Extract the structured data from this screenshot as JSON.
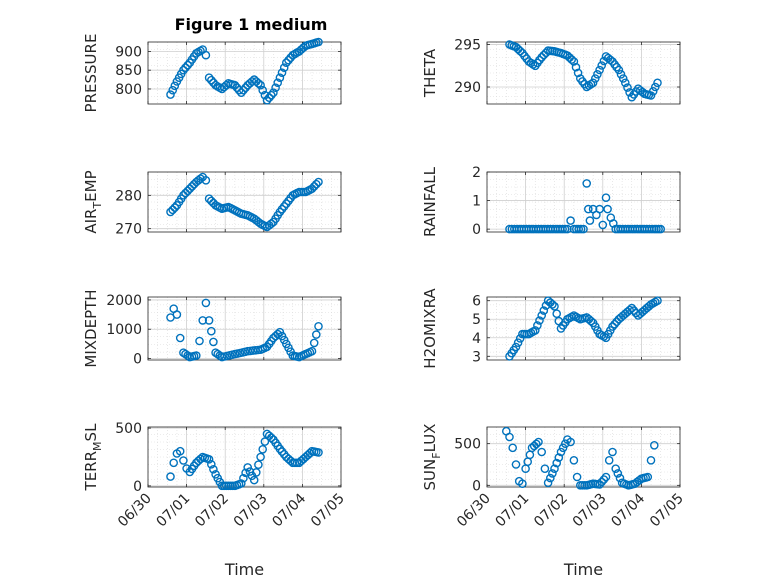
{
  "figure_title": "Figure 1 medium",
  "marker_color": "#0072BD",
  "chart_data": [
    {
      "type": "scatter",
      "name": "PRESSURE",
      "ylabel": "PRESSURE",
      "ylabel_main": "PRESSURE",
      "ylabel_sub": "",
      "ylabel_tail": "",
      "ylim": [
        760,
        925
      ],
      "yticks": [
        800,
        850,
        900
      ],
      "xlabel": "",
      "x": [
        "06/30 14:00",
        "06/30 18:00",
        "06/30 22:00",
        "07/01 02:00",
        "07/01 06:00",
        "07/01 10:00",
        "07/01 12:00",
        "07/01 14:00",
        "07/01 18:00",
        "07/01 22:00",
        "07/02 02:00",
        "07/02 06:00",
        "07/02 10:00",
        "07/02 14:00",
        "07/02 18:00",
        "07/02 22:00",
        "07/03 02:00",
        "07/03 06:00",
        "07/03 10:00",
        "07/03 14:00",
        "07/03 18:00",
        "07/03 22:00",
        "07/04 02:00",
        "07/04 06:00",
        "07/04 10:00"
      ],
      "y": [
        785,
        820,
        850,
        870,
        895,
        905,
        890,
        830,
        810,
        800,
        815,
        810,
        790,
        810,
        825,
        810,
        770,
        790,
        830,
        870,
        890,
        900,
        915,
        920,
        925
      ]
    },
    {
      "type": "scatter",
      "name": "THETA",
      "ylabel": "THETA",
      "ylabel_main": "THETA",
      "ylabel_sub": "",
      "ylabel_tail": "",
      "ylim": [
        288,
        295.3
      ],
      "yticks": [
        290,
        295
      ],
      "xlabel": "",
      "x": [
        "06/30 14:00",
        "06/30 18:00",
        "06/30 22:00",
        "07/01 02:00",
        "07/01 06:00",
        "07/01 10:00",
        "07/01 14:00",
        "07/01 18:00",
        "07/01 22:00",
        "07/02 02:00",
        "07/02 06:00",
        "07/02 10:00",
        "07/02 14:00",
        "07/02 18:00",
        "07/02 22:00",
        "07/03 02:00",
        "07/03 06:00",
        "07/03 10:00",
        "07/03 14:00",
        "07/03 18:00",
        "07/03 22:00",
        "07/04 02:00",
        "07/04 06:00",
        "07/04 10:00"
      ],
      "y": [
        295,
        294.7,
        294,
        293,
        292.5,
        293.5,
        294.3,
        294.2,
        294,
        293.7,
        293,
        291,
        290,
        290.5,
        292,
        293.6,
        293,
        292,
        290.5,
        288.8,
        289.8,
        289.2,
        289,
        290.5
      ]
    },
    {
      "type": "scatter",
      "name": "AIR_TEMP",
      "ylabel": "AIR_TEMP",
      "ylabel_main": "AIR",
      "ylabel_sub": "T",
      "ylabel_tail": "EMP",
      "ylim": [
        269,
        287
      ],
      "yticks": [
        270,
        280
      ],
      "xlabel": "",
      "x": [
        "06/30 14:00",
        "06/30 18:00",
        "06/30 22:00",
        "07/01 02:00",
        "07/01 06:00",
        "07/01 10:00",
        "07/01 12:00",
        "07/01 14:00",
        "07/01 18:00",
        "07/01 22:00",
        "07/02 02:00",
        "07/02 06:00",
        "07/02 10:00",
        "07/02 14:00",
        "07/02 18:00",
        "07/02 22:00",
        "07/03 02:00",
        "07/03 06:00",
        "07/03 10:00",
        "07/03 14:00",
        "07/03 18:00",
        "07/03 22:00",
        "07/04 02:00",
        "07/04 06:00",
        "07/04 10:00"
      ],
      "y": [
        275,
        277,
        280,
        282,
        284,
        285.5,
        284.5,
        279,
        277,
        276,
        276.5,
        275.5,
        274.5,
        274,
        273,
        271.5,
        270.5,
        272,
        275,
        277.5,
        280,
        281,
        281,
        282,
        284
      ]
    },
    {
      "type": "scatter",
      "name": "RAINFALL",
      "ylabel": "RAINFALL",
      "ylabel_main": "RAINFALL",
      "ylabel_sub": "",
      "ylabel_tail": "",
      "ylim": [
        -0.1,
        2
      ],
      "yticks": [
        0,
        1,
        2
      ],
      "xlabel": "",
      "x": [
        "06/30 14:00",
        "06/30 20:00",
        "07/01 02:00",
        "07/01 08:00",
        "07/01 14:00",
        "07/01 20:00",
        "07/02 02:00",
        "07/02 04:00",
        "07/02 06:00",
        "07/02 12:00",
        "07/02 14:00",
        "07/02 15:00",
        "07/02 16:00",
        "07/02 18:00",
        "07/02 20:00",
        "07/02 22:00",
        "07/03 00:00",
        "07/03 02:00",
        "07/03 03:00",
        "07/03 05:00",
        "07/03 08:00",
        "07/03 14:00",
        "07/03 20:00",
        "07/04 02:00",
        "07/04 08:00",
        "07/04 12:00"
      ],
      "y": [
        0,
        0,
        0,
        0,
        0,
        0,
        0,
        0.3,
        0,
        0,
        1.6,
        0.7,
        0.3,
        0.7,
        0.5,
        0.7,
        0.15,
        1.1,
        0.7,
        0.4,
        0,
        0,
        0,
        0,
        0,
        0
      ]
    },
    {
      "type": "scatter",
      "name": "MIXDEPTH",
      "ylabel": "MIXDEPTH",
      "ylabel_main": "MIXDEPTH",
      "ylabel_sub": "",
      "ylabel_tail": "",
      "ylim": [
        -50,
        2100
      ],
      "yticks": [
        0,
        1000,
        2000
      ],
      "xlabel": "",
      "x": [
        "06/30 14:00",
        "06/30 16:00",
        "06/30 18:00",
        "06/30 20:00",
        "06/30 22:00",
        "07/01 02:00",
        "07/01 06:00",
        "07/01 08:00",
        "07/01 10:00",
        "07/01 12:00",
        "07/01 14:00",
        "07/01 18:00",
        "07/01 22:00",
        "07/02 06:00",
        "07/02 14:00",
        "07/02 22:00",
        "07/03 02:00",
        "07/03 06:00",
        "07/03 10:00",
        "07/03 14:00",
        "07/03 18:00",
        "07/03 22:00",
        "07/04 02:00",
        "07/04 06:00",
        "07/04 10:00"
      ],
      "y": [
        1400,
        1700,
        1500,
        700,
        200,
        50,
        100,
        600,
        1300,
        1900,
        1300,
        200,
        50,
        150,
        250,
        300,
        400,
        700,
        900,
        500,
        100,
        50,
        150,
        250,
        1100
      ]
    },
    {
      "type": "scatter",
      "name": "H2OMIXRA",
      "ylabel": "H2OMIXRA",
      "ylabel_main": "H2OMIXRA",
      "ylabel_sub": "",
      "ylabel_tail": "",
      "ylim": [
        2.8,
        6.2
      ],
      "yticks": [
        3,
        4,
        5,
        6
      ],
      "xlabel": "",
      "x": [
        "06/30 14:00",
        "06/30 18:00",
        "06/30 22:00",
        "07/01 02:00",
        "07/01 06:00",
        "07/01 10:00",
        "07/01 14:00",
        "07/01 18:00",
        "07/01 22:00",
        "07/02 02:00",
        "07/02 06:00",
        "07/02 10:00",
        "07/02 14:00",
        "07/02 18:00",
        "07/02 22:00",
        "07/03 02:00",
        "07/03 06:00",
        "07/03 10:00",
        "07/03 14:00",
        "07/03 18:00",
        "07/03 22:00",
        "07/04 02:00",
        "07/04 06:00",
        "07/04 10:00"
      ],
      "y": [
        3,
        3.5,
        4.2,
        4.2,
        4.4,
        5.2,
        6,
        5.7,
        4.5,
        5,
        5.2,
        5,
        5.1,
        4.8,
        4.2,
        4,
        4.6,
        5,
        5.3,
        5.6,
        5.2,
        5.5,
        5.8,
        6
      ]
    },
    {
      "type": "scatter",
      "name": "TERR_MSL",
      "ylabel": "TERR_MSL",
      "ylabel_main": "TERR",
      "ylabel_sub": "M",
      "ylabel_tail": "SL",
      "ylim": [
        -10,
        510
      ],
      "yticks": [
        0,
        500
      ],
      "xlabel": "Time",
      "xticks": [
        "06/30",
        "07/01",
        "07/02",
        "07/03",
        "07/04",
        "07/05"
      ],
      "x": [
        "06/30 14:00",
        "06/30 16:00",
        "06/30 18:00",
        "06/30 20:00",
        "06/30 22:00",
        "07/01 00:00",
        "07/01 02:00",
        "07/01 06:00",
        "07/01 10:00",
        "07/01 14:00",
        "07/01 18:00",
        "07/01 22:00",
        "07/02 02:00",
        "07/02 06:00",
        "07/02 10:00",
        "07/02 14:00",
        "07/02 18:00",
        "07/02 22:00",
        "07/03 02:00",
        "07/03 06:00",
        "07/03 10:00",
        "07/03 14:00",
        "07/03 18:00",
        "07/03 22:00",
        "07/04 02:00",
        "07/04 06:00",
        "07/04 10:00"
      ],
      "y": [
        80,
        200,
        280,
        300,
        220,
        150,
        120,
        200,
        250,
        230,
        100,
        0,
        0,
        0,
        20,
        160,
        50,
        250,
        450,
        400,
        320,
        250,
        200,
        200,
        250,
        300,
        290
      ]
    },
    {
      "type": "scatter",
      "name": "SUN_FLUX",
      "ylabel": "SUN_FLUX",
      "ylabel_main": "SUN",
      "ylabel_sub": "F",
      "ylabel_tail": "LUX",
      "ylim": [
        -20,
        700
      ],
      "yticks": [
        0,
        500
      ],
      "xlabel": "Time",
      "xticks": [
        "06/30",
        "07/01",
        "07/02",
        "07/03",
        "07/04",
        "07/05"
      ],
      "x": [
        "06/30 12:00",
        "06/30 14:00",
        "06/30 16:00",
        "06/30 18:00",
        "06/30 20:00",
        "06/30 22:00",
        "07/01 00:00",
        "07/01 04:00",
        "07/01 08:00",
        "07/01 10:00",
        "07/01 12:00",
        "07/01 14:00",
        "07/01 18:00",
        "07/01 22:00",
        "07/02 02:00",
        "07/02 04:00",
        "07/02 06:00",
        "07/02 08:00",
        "07/02 10:00",
        "07/02 14:00",
        "07/02 18:00",
        "07/02 22:00",
        "07/03 02:00",
        "07/03 04:00",
        "07/03 06:00",
        "07/03 08:00",
        "07/03 12:00",
        "07/03 16:00",
        "07/03 20:00",
        "07/04 00:00",
        "07/04 04:00",
        "07/04 06:00",
        "07/04 08:00"
      ],
      "y": [
        650,
        580,
        450,
        250,
        50,
        20,
        200,
        450,
        520,
        400,
        200,
        30,
        200,
        400,
        550,
        520,
        300,
        100,
        0,
        0,
        20,
        10,
        100,
        300,
        400,
        200,
        30,
        0,
        20,
        80,
        100,
        300,
        480
      ]
    }
  ]
}
